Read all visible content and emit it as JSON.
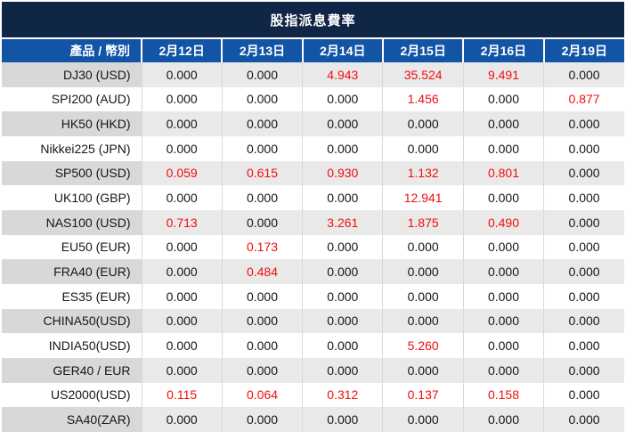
{
  "title": "股指派息費率",
  "colors": {
    "title_bar_bg": "#102647",
    "header_bg": "#1254a6",
    "stripe_row_bg": "#e9e9e9",
    "stripe_product_col_bg": "#d8d8d8",
    "divider": "#d9d9d9",
    "text_color": "#15151d",
    "nonzero_value_color": "#f20d0d",
    "header_text_color": "#ffffff"
  },
  "chart_data": {
    "type": "table",
    "title": "股指派息費率",
    "columns": [
      "產品 / 幣別",
      "2月12日",
      "2月13日",
      "2月14日",
      "2月15日",
      "2月16日",
      "2月19日"
    ],
    "rows": [
      {
        "product": "DJ30 (USD)",
        "values": [
          "0.000",
          "0.000",
          "4.943",
          "35.524",
          "9.491",
          "0.000"
        ]
      },
      {
        "product": "SPI200 (AUD)",
        "values": [
          "0.000",
          "0.000",
          "0.000",
          "1.456",
          "0.000",
          "0.877"
        ]
      },
      {
        "product": "HK50 (HKD)",
        "values": [
          "0.000",
          "0.000",
          "0.000",
          "0.000",
          "0.000",
          "0.000"
        ]
      },
      {
        "product": "Nikkei225 (JPN)",
        "values": [
          "0.000",
          "0.000",
          "0.000",
          "0.000",
          "0.000",
          "0.000"
        ]
      },
      {
        "product": "SP500 (USD)",
        "values": [
          "0.059",
          "0.615",
          "0.930",
          "1.132",
          "0.801",
          "0.000"
        ]
      },
      {
        "product": "UK100 (GBP)",
        "values": [
          "0.000",
          "0.000",
          "0.000",
          "12.941",
          "0.000",
          "0.000"
        ]
      },
      {
        "product": "NAS100 (USD)",
        "values": [
          "0.713",
          "0.000",
          "3.261",
          "1.875",
          "0.490",
          "0.000"
        ]
      },
      {
        "product": "EU50 (EUR)",
        "values": [
          "0.000",
          "0.173",
          "0.000",
          "0.000",
          "0.000",
          "0.000"
        ]
      },
      {
        "product": "FRA40 (EUR)",
        "values": [
          "0.000",
          "0.484",
          "0.000",
          "0.000",
          "0.000",
          "0.000"
        ]
      },
      {
        "product": "ES35 (EUR)",
        "values": [
          "0.000",
          "0.000",
          "0.000",
          "0.000",
          "0.000",
          "0.000"
        ]
      },
      {
        "product": "CHINA50(USD)",
        "values": [
          "0.000",
          "0.000",
          "0.000",
          "0.000",
          "0.000",
          "0.000"
        ]
      },
      {
        "product": "INDIA50(USD)",
        "values": [
          "0.000",
          "0.000",
          "0.000",
          "5.260",
          "0.000",
          "0.000"
        ]
      },
      {
        "product": "GER40 / EUR",
        "values": [
          "0.000",
          "0.000",
          "0.000",
          "0.000",
          "0.000",
          "0.000"
        ]
      },
      {
        "product": "US2000(USD)",
        "values": [
          "0.115",
          "0.064",
          "0.312",
          "0.137",
          "0.158",
          "0.000"
        ]
      },
      {
        "product": "SA40(ZAR)",
        "values": [
          "0.000",
          "0.000",
          "0.000",
          "0.000",
          "0.000",
          "0.000"
        ]
      }
    ],
    "layout": {
      "striped_rows": "odd rows (1st, 3rd, ...) have gray background",
      "highlight_rule": "non-zero values rendered in red"
    }
  }
}
